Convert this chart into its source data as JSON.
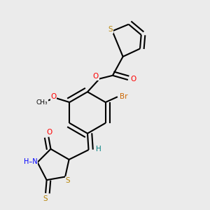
{
  "background_color": "#ebebeb",
  "bond_color": "#000000",
  "atom_colors": {
    "S": "#b8860b",
    "O": "#ff0000",
    "N": "#0000ff",
    "Br": "#cc6600",
    "H": "#008080",
    "C": "#000000"
  }
}
